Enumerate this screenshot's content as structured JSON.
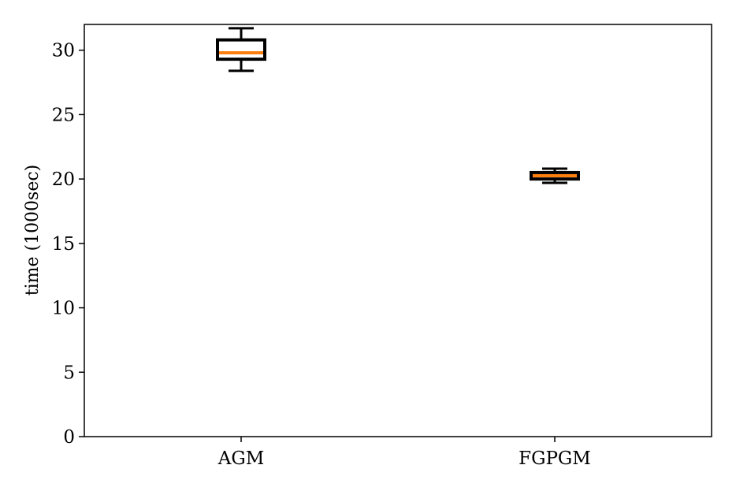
{
  "chart_data": {
    "type": "box",
    "title": "",
    "xlabel": "",
    "ylabel": "time (1000sec)",
    "ylim": [
      0,
      32
    ],
    "yticks": [
      0,
      5,
      10,
      15,
      20,
      25,
      30
    ],
    "categories": [
      "AGM",
      "FGPGM"
    ],
    "boxes": [
      {
        "category": "AGM",
        "whisker_low": 28.4,
        "q1": 29.3,
        "median": 29.8,
        "q3": 30.8,
        "whisker_high": 31.7
      },
      {
        "category": "FGPGM",
        "whisker_low": 19.7,
        "q1": 20.0,
        "median": 20.25,
        "q3": 20.5,
        "whisker_high": 20.8
      }
    ],
    "colors": {
      "box": "#000000",
      "median": "#ff7f0e",
      "axes": "#000000"
    },
    "grid": false
  }
}
